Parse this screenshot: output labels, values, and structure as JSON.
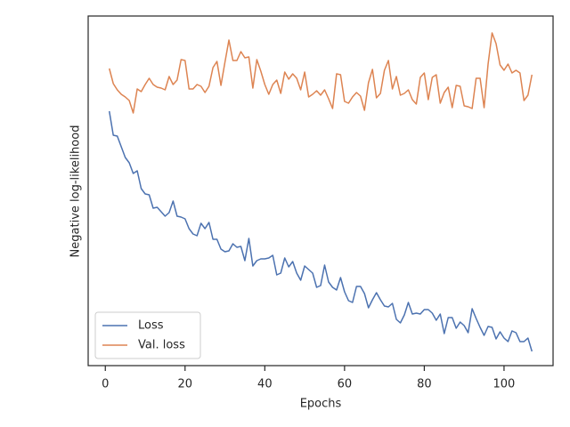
{
  "chart_data": {
    "type": "line",
    "xlabel": "Epochs",
    "ylabel": "Negative log-likelihood",
    "x": [
      1,
      2,
      3,
      4,
      5,
      6,
      7,
      8,
      9,
      10,
      11,
      12,
      13,
      14,
      15,
      16,
      17,
      18,
      19,
      20,
      21,
      22,
      23,
      24,
      25,
      26,
      27,
      28,
      29,
      30,
      31,
      32,
      33,
      34,
      35,
      36,
      37,
      38,
      39,
      40,
      41,
      42,
      43,
      44,
      45,
      46,
      47,
      48,
      49,
      50,
      51,
      52,
      53,
      54,
      55,
      56,
      57,
      58,
      59,
      60,
      61,
      62,
      63,
      64,
      65,
      66,
      67,
      68,
      69,
      70,
      71,
      72,
      73,
      74,
      75,
      76,
      77,
      78,
      79,
      80,
      81,
      82,
      83,
      84,
      85,
      86,
      87,
      88,
      89,
      90,
      91,
      92,
      93,
      94,
      95,
      96,
      97,
      98,
      99,
      100,
      101,
      102,
      103,
      104,
      105,
      106,
      107
    ],
    "series": [
      {
        "name": "Loss",
        "color": "#4c72b0",
        "values": [
          286,
          259,
          258,
          246,
          234,
          228,
          216,
          219,
          199,
          193,
          192,
          177,
          178,
          173,
          168,
          172,
          185,
          168,
          167,
          165,
          154,
          148,
          146,
          160,
          154,
          161,
          142,
          142,
          131,
          128,
          129,
          137,
          133,
          134,
          118,
          143,
          112,
          118,
          120,
          120,
          121,
          124,
          102,
          104,
          121,
          111,
          117,
          104,
          96,
          112,
          108,
          104,
          88,
          90,
          113,
          94,
          88,
          85,
          99,
          83,
          73,
          71,
          89,
          89,
          81,
          65,
          74,
          82,
          74,
          67,
          66,
          70,
          52,
          48,
          57,
          71,
          58,
          59,
          58,
          63,
          63,
          59,
          51,
          58,
          36,
          54,
          54,
          42,
          49,
          45,
          37,
          64,
          53,
          43,
          34,
          44,
          43,
          30,
          38,
          31,
          27,
          39,
          37,
          27,
          27,
          31,
          16
        ]
      },
      {
        "name": "Val. loss",
        "color": "#dd8452",
        "values": [
          334,
          317,
          310,
          305,
          302,
          298,
          284,
          311,
          308,
          316,
          323,
          316,
          313,
          312,
          310,
          325,
          316,
          321,
          344,
          343,
          311,
          311,
          316,
          314,
          307,
          314,
          335,
          342,
          315,
          341,
          366,
          343,
          343,
          353,
          346,
          347,
          312,
          344,
          331,
          316,
          305,
          316,
          321,
          306,
          330,
          322,
          328,
          323,
          310,
          330,
          302,
          305,
          309,
          304,
          310,
          300,
          289,
          328,
          327,
          297,
          295,
          302,
          307,
          303,
          287,
          318,
          333,
          301,
          306,
          332,
          343,
          311,
          325,
          304,
          306,
          310,
          299,
          294,
          324,
          329,
          299,
          324,
          327,
          295,
          307,
          313,
          290,
          315,
          314,
          292,
          291,
          289,
          323,
          323,
          290,
          339,
          374,
          362,
          338,
          332,
          339,
          329,
          332,
          329,
          298,
          304,
          327
        ]
      }
    ],
    "xlim": [
      -4.3,
      112.3
    ],
    "xticks": [
      0,
      20,
      40,
      60,
      80,
      100
    ],
    "ylim": [
      0,
      393
    ],
    "legend": "lower left"
  }
}
